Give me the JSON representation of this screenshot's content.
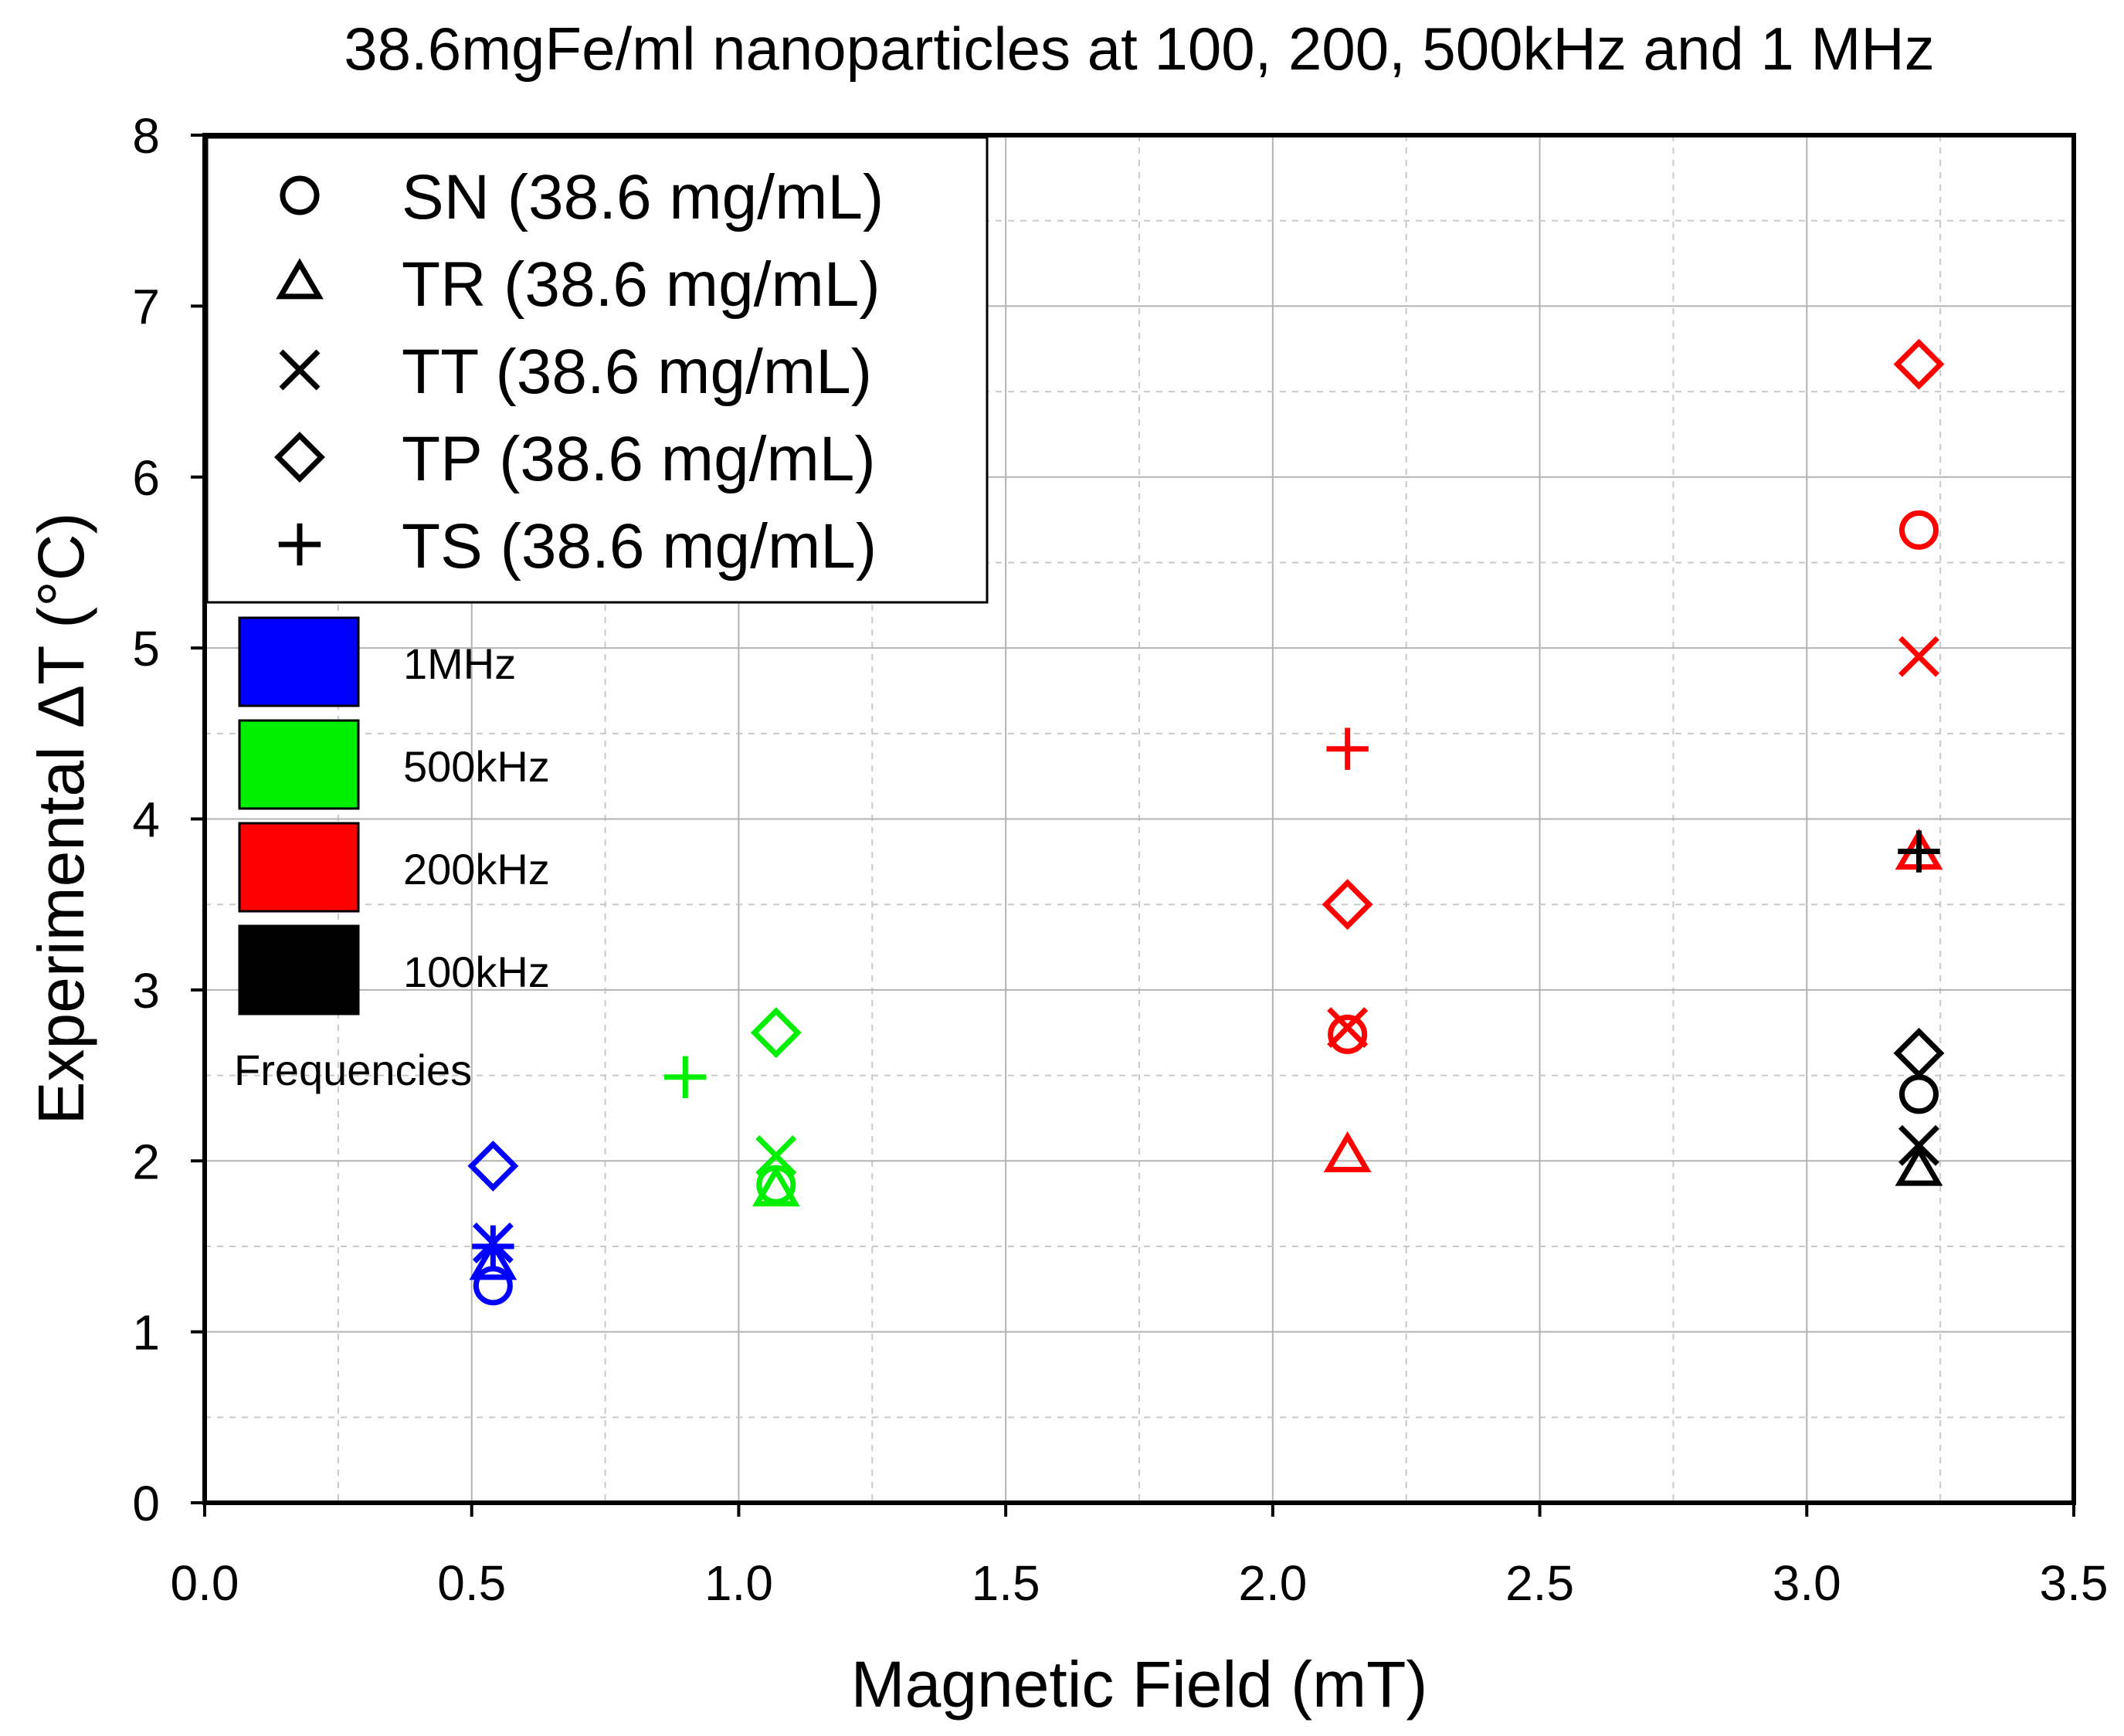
{
  "chart_data": {
    "type": "scatter",
    "title": "38.6mgFe/ml nanoparticles at 100, 200, 500kHz and 1 MHz",
    "xlabel": "Magnetic Field (mT)",
    "ylabel": "Experimental ΔT (°C)",
    "xlim": [
      0,
      3.5
    ],
    "ylim": [
      0,
      8
    ],
    "x_ticks": [
      "0.0",
      "0.5",
      "1.0",
      "1.5",
      "2.0",
      "2.5",
      "3.0",
      "3.5"
    ],
    "y_ticks": [
      "0",
      "1",
      "2",
      "3",
      "4",
      "5",
      "6",
      "7",
      "8"
    ],
    "grid": true,
    "colors": {
      "1MHz": "#0000ff",
      "500kHz": "#00ee00",
      "200kHz": "#ff0000",
      "100kHz": "#000000"
    },
    "legend_markers": {
      "placement": "top-left",
      "items": [
        {
          "symbol": "circle",
          "label": "SN  (38.6 mg/mL)"
        },
        {
          "symbol": "triangle",
          "label": "TR  (38.6 mg/mL)"
        },
        {
          "symbol": "x",
          "label": "TT  (38.6 mg/mL)"
        },
        {
          "symbol": "diamond",
          "label": "TP  (38.6 mg/mL)"
        },
        {
          "symbol": "plus",
          "label": "TS  (38.6 mg/mL)"
        }
      ]
    },
    "legend_frequencies": {
      "title": "Frequencies",
      "items": [
        {
          "label": "1MHz",
          "color": "#0000ff"
        },
        {
          "label": "500kHz",
          "color": "#00ee00"
        },
        {
          "label": "200kHz",
          "color": "#ff0000"
        },
        {
          "label": "100kHz",
          "color": "#000000"
        }
      ]
    },
    "series": [
      {
        "name": "SN",
        "symbol": "circle",
        "points": [
          {
            "x": 0.54,
            "y": 1.27,
            "freq": "1MHz"
          },
          {
            "x": 1.07,
            "y": 1.86,
            "freq": "500kHz"
          },
          {
            "x": 2.14,
            "y": 2.74,
            "freq": "200kHz"
          },
          {
            "x": 3.21,
            "y": 5.69,
            "freq": "200kHz"
          },
          {
            "x": 3.21,
            "y": 2.39,
            "freq": "100kHz"
          }
        ]
      },
      {
        "name": "TR",
        "symbol": "triangle",
        "points": [
          {
            "x": 0.54,
            "y": 1.4,
            "freq": "1MHz"
          },
          {
            "x": 1.07,
            "y": 1.83,
            "freq": "500kHz"
          },
          {
            "x": 2.14,
            "y": 2.03,
            "freq": "200kHz"
          },
          {
            "x": 3.21,
            "y": 3.8,
            "freq": "200kHz"
          },
          {
            "x": 3.21,
            "y": 1.95,
            "freq": "100kHz"
          }
        ]
      },
      {
        "name": "TT",
        "symbol": "x",
        "points": [
          {
            "x": 0.54,
            "y": 1.52,
            "freq": "1MHz"
          },
          {
            "x": 1.07,
            "y": 2.03,
            "freq": "500kHz"
          },
          {
            "x": 2.14,
            "y": 2.78,
            "freq": "200kHz"
          },
          {
            "x": 3.21,
            "y": 4.95,
            "freq": "200kHz"
          },
          {
            "x": 3.21,
            "y": 2.09,
            "freq": "100kHz"
          }
        ]
      },
      {
        "name": "TP",
        "symbol": "diamond",
        "points": [
          {
            "x": 0.54,
            "y": 1.97,
            "freq": "1MHz"
          },
          {
            "x": 1.07,
            "y": 2.75,
            "freq": "500kHz"
          },
          {
            "x": 2.14,
            "y": 3.5,
            "freq": "200kHz"
          },
          {
            "x": 3.21,
            "y": 6.66,
            "freq": "200kHz"
          },
          {
            "x": 3.21,
            "y": 2.63,
            "freq": "100kHz"
          }
        ]
      },
      {
        "name": "TS",
        "symbol": "plus",
        "points": [
          {
            "x": 0.54,
            "y": 1.5,
            "freq": "1MHz"
          },
          {
            "x": 0.9,
            "y": 2.49,
            "freq": "500kHz"
          },
          {
            "x": 2.14,
            "y": 4.41,
            "freq": "200kHz"
          },
          {
            "x": 3.21,
            "y": 3.81,
            "freq": "100kHz"
          }
        ]
      }
    ]
  }
}
